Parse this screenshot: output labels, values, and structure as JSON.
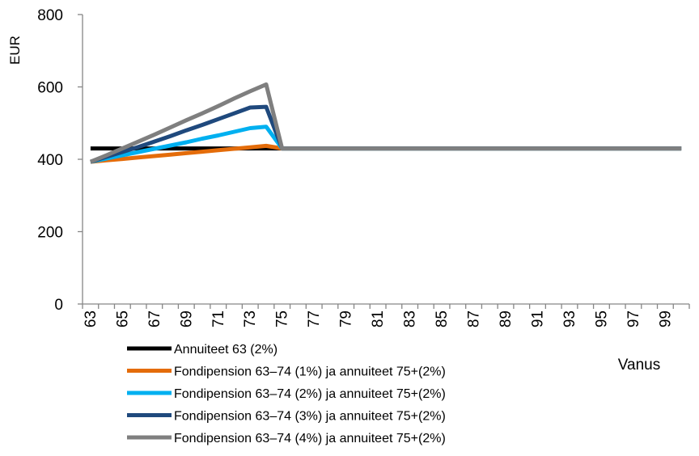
{
  "chart_data": {
    "type": "line",
    "title": "",
    "xlabel": "Vanus",
    "ylabel": "EUR",
    "ylim": [
      0,
      800
    ],
    "yticks": [
      0,
      200,
      400,
      600,
      800
    ],
    "x": [
      63,
      64,
      65,
      66,
      67,
      68,
      69,
      70,
      71,
      72,
      73,
      74,
      75,
      76,
      77,
      78,
      79,
      80,
      81,
      82,
      83,
      84,
      85,
      86,
      87,
      88,
      89,
      90,
      91,
      92,
      93,
      94,
      95,
      96,
      97,
      98,
      99,
      100
    ],
    "xtick_labels": [
      "63",
      "65",
      "67",
      "69",
      "71",
      "73",
      "75",
      "77",
      "79",
      "81",
      "83",
      "85",
      "87",
      "89",
      "91",
      "93",
      "95",
      "97",
      "99"
    ],
    "grid": false,
    "legend_position": "bottom",
    "series": [
      {
        "name": "Annuiteet 63 (2%)",
        "color": "#000000",
        "values": [
          430,
          430,
          430,
          430,
          430,
          430,
          430,
          430,
          430,
          430,
          430,
          430,
          430,
          430,
          430,
          430,
          430,
          430,
          430,
          430,
          430,
          430,
          430,
          430,
          430,
          430,
          430,
          430,
          430,
          430,
          430,
          430,
          430,
          430,
          430,
          430,
          430,
          430
        ]
      },
      {
        "name": "Fondipension 63–74 (1%) ja annuiteet 75+(2%)",
        "color": "#E46C0A",
        "values": [
          393,
          397,
          401,
          405,
          409,
          413,
          417,
          421,
          425,
          429,
          433,
          437,
          430,
          430,
          430,
          430,
          430,
          430,
          430,
          430,
          430,
          430,
          430,
          430,
          430,
          430,
          430,
          430,
          430,
          430,
          430,
          430,
          430,
          430,
          430,
          430,
          430,
          430
        ]
      },
      {
        "name": "Fondipension 63–74 (2%) ja annuiteet 75+(2%)",
        "color": "#00B0F0",
        "values": [
          393,
          402,
          411,
          420,
          429,
          438,
          447,
          457,
          466,
          476,
          486,
          490,
          430,
          430,
          430,
          430,
          430,
          430,
          430,
          430,
          430,
          430,
          430,
          430,
          430,
          430,
          430,
          430,
          430,
          430,
          430,
          430,
          430,
          430,
          430,
          430,
          430,
          430
        ]
      },
      {
        "name": "Fondipension 63–74 (3%) ja annuiteet 75+(2%)",
        "color": "#1F497D",
        "values": [
          393,
          407,
          420,
          434,
          449,
          464,
          480,
          495,
          511,
          527,
          543,
          545,
          430,
          430,
          430,
          430,
          430,
          430,
          430,
          430,
          430,
          430,
          430,
          430,
          430,
          430,
          430,
          430,
          430,
          430,
          430,
          430,
          430,
          430,
          430,
          430,
          430,
          430
        ]
      },
      {
        "name": "Fondipension 63–74 (4%) ja annuiteet 75+(2%)",
        "color": "#7F7F7F",
        "values": [
          393,
          411,
          430,
          449,
          468,
          488,
          508,
          527,
          547,
          568,
          588,
          607,
          430,
          430,
          430,
          430,
          430,
          430,
          430,
          430,
          430,
          430,
          430,
          430,
          430,
          430,
          430,
          430,
          430,
          430,
          430,
          430,
          430,
          430,
          430,
          430,
          430,
          430
        ]
      }
    ]
  }
}
